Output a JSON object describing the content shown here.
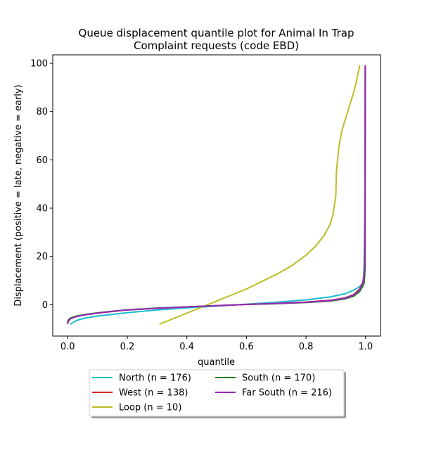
{
  "chart_data": {
    "type": "line",
    "title": [
      "Queue displacement quantile plot for Animal In Trap",
      "Complaint  requests (code EBD)"
    ],
    "xlabel": "quantile",
    "ylabel": "Displacement (positive = late, negative = early)",
    "xlim": [
      -0.05,
      1.05
    ],
    "ylim": [
      -13,
      103.5
    ],
    "xticks": [
      0.0,
      0.2,
      0.4,
      0.6,
      0.8,
      1.0
    ],
    "xtick_labels": [
      "0.0",
      "0.2",
      "0.4",
      "0.6",
      "0.8",
      "1.0"
    ],
    "yticks": [
      0,
      20,
      40,
      60,
      80,
      100
    ],
    "ytick_labels": [
      "0",
      "20",
      "40",
      "60",
      "80",
      "100"
    ],
    "grid": false,
    "legend_position": "below-center",
    "series": [
      {
        "name": "North (n = 176)",
        "color": "#17becf",
        "points": [
          [
            0.01,
            -8
          ],
          [
            0.03,
            -6.5
          ],
          [
            0.06,
            -5.5
          ],
          [
            0.1,
            -4.7
          ],
          [
            0.15,
            -4
          ],
          [
            0.2,
            -3.3
          ],
          [
            0.3,
            -2.2
          ],
          [
            0.4,
            -1.3
          ],
          [
            0.5,
            -0.6
          ],
          [
            0.6,
            0.2
          ],
          [
            0.7,
            1
          ],
          [
            0.8,
            2
          ],
          [
            0.88,
            3.2
          ],
          [
            0.93,
            4.5
          ],
          [
            0.96,
            6
          ],
          [
            0.98,
            7.5
          ],
          [
            0.99,
            9
          ],
          [
            0.993,
            11
          ],
          [
            0.995,
            16
          ],
          [
            0.996,
            25
          ],
          [
            0.998,
            50
          ],
          [
            0.999,
            99
          ]
        ]
      },
      {
        "name": "West (n = 138)",
        "color": "#d62728",
        "points": [
          [
            0.0,
            -7.5
          ],
          [
            0.003,
            -6.5
          ],
          [
            0.01,
            -5.6
          ],
          [
            0.03,
            -4.8
          ],
          [
            0.06,
            -4.1
          ],
          [
            0.1,
            -3.5
          ],
          [
            0.15,
            -2.8
          ],
          [
            0.2,
            -2.2
          ],
          [
            0.3,
            -1.5
          ],
          [
            0.4,
            -0.9
          ],
          [
            0.5,
            -0.4
          ],
          [
            0.6,
            0.1
          ],
          [
            0.7,
            0.5
          ],
          [
            0.8,
            1.1
          ],
          [
            0.88,
            1.8
          ],
          [
            0.93,
            2.8
          ],
          [
            0.96,
            4.2
          ],
          [
            0.98,
            6.5
          ],
          [
            0.99,
            9
          ],
          [
            0.995,
            12
          ],
          [
            0.997,
            20
          ],
          [
            0.998,
            40
          ],
          [
            0.999,
            99
          ]
        ]
      },
      {
        "name": "Loop (n = 10)",
        "color": "#bcbd22",
        "points": [
          [
            0.31,
            -8
          ],
          [
            0.35,
            -6
          ],
          [
            0.4,
            -3.5
          ],
          [
            0.45,
            -1
          ],
          [
            0.5,
            1.5
          ],
          [
            0.55,
            4
          ],
          [
            0.6,
            6.5
          ],
          [
            0.65,
            9.5
          ],
          [
            0.7,
            12.5
          ],
          [
            0.75,
            16
          ],
          [
            0.8,
            20.5
          ],
          [
            0.83,
            24
          ],
          [
            0.86,
            28.5
          ],
          [
            0.88,
            33
          ],
          [
            0.89,
            37
          ],
          [
            0.9,
            45
          ],
          [
            0.902,
            55
          ],
          [
            0.91,
            65
          ],
          [
            0.92,
            72
          ],
          [
            0.94,
            80
          ],
          [
            0.96,
            88
          ],
          [
            0.97,
            93
          ],
          [
            0.98,
            99
          ]
        ]
      },
      {
        "name": "South (n = 170)",
        "color": "#1f7f1f",
        "points": [
          [
            0.0,
            -7
          ],
          [
            0.003,
            -6.2
          ],
          [
            0.01,
            -5.5
          ],
          [
            0.03,
            -4.7
          ],
          [
            0.06,
            -4
          ],
          [
            0.1,
            -3.4
          ],
          [
            0.15,
            -2.7
          ],
          [
            0.2,
            -2.1
          ],
          [
            0.3,
            -1.4
          ],
          [
            0.4,
            -0.9
          ],
          [
            0.5,
            -0.4
          ],
          [
            0.6,
            0.1
          ],
          [
            0.7,
            0.4
          ],
          [
            0.8,
            0.9
          ],
          [
            0.88,
            1.5
          ],
          [
            0.93,
            2.4
          ],
          [
            0.96,
            3.5
          ],
          [
            0.98,
            5.5
          ],
          [
            0.99,
            7.5
          ],
          [
            0.995,
            9
          ],
          [
            0.997,
            12
          ],
          [
            0.998,
            15
          ],
          [
            0.999,
            99
          ]
        ]
      },
      {
        "name": "Far South (n = 216)",
        "color": "#9b27b8",
        "points": [
          [
            0.0,
            -7.8
          ],
          [
            0.003,
            -6.8
          ],
          [
            0.01,
            -5.8
          ],
          [
            0.03,
            -4.9
          ],
          [
            0.06,
            -4.2
          ],
          [
            0.1,
            -3.5
          ],
          [
            0.15,
            -2.8
          ],
          [
            0.2,
            -2.2
          ],
          [
            0.3,
            -1.5
          ],
          [
            0.4,
            -0.9
          ],
          [
            0.5,
            -0.4
          ],
          [
            0.6,
            0.1
          ],
          [
            0.7,
            0.5
          ],
          [
            0.8,
            1
          ],
          [
            0.88,
            1.7
          ],
          [
            0.93,
            2.7
          ],
          [
            0.96,
            4
          ],
          [
            0.98,
            6.2
          ],
          [
            0.99,
            8.5
          ],
          [
            0.995,
            12
          ],
          [
            0.997,
            18
          ],
          [
            0.998,
            30
          ],
          [
            0.999,
            99
          ]
        ]
      }
    ],
    "legend_order": [
      0,
      1,
      2,
      3,
      4
    ]
  }
}
